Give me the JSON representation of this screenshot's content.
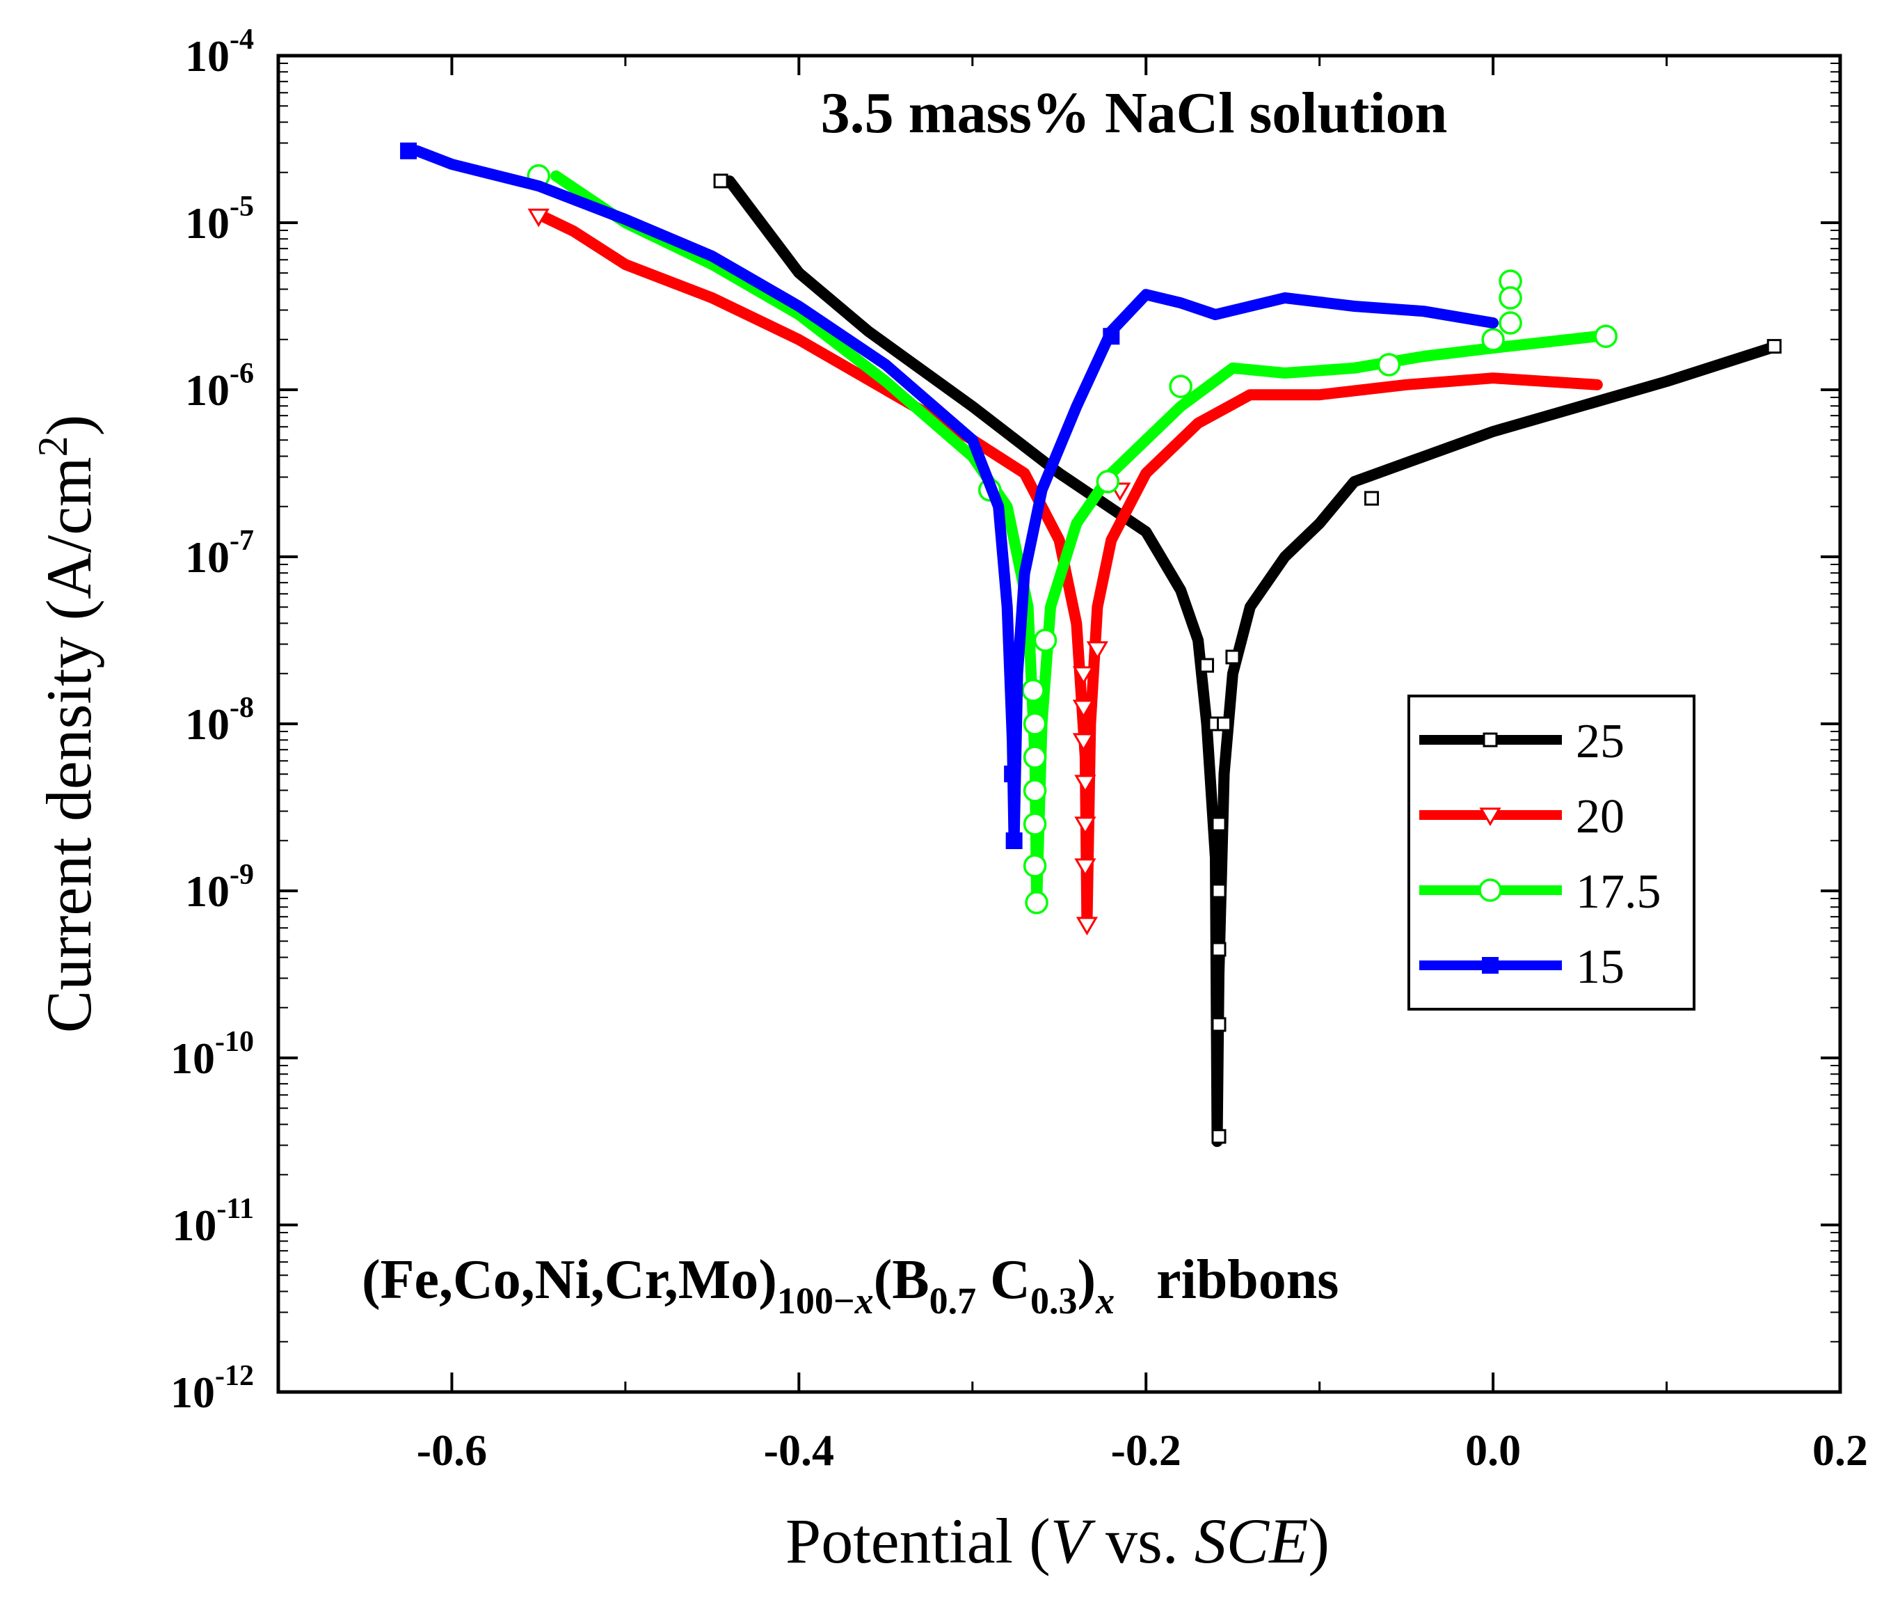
{
  "chart_data": {
    "type": "line",
    "title": "3.5 mass% NaCl solution",
    "annotation": {
      "prefix": "(Fe,Co,Ni,Cr,Mo)",
      "sub1": "100−",
      "sub1_var": "x",
      "mid": "(B",
      "sub2": "0.7",
      "mid2": " C",
      "sub3": "0.3",
      "close": ")",
      "sub4": "x",
      "suffix": "ribbons"
    },
    "xlabel": {
      "prefix": "Potential (",
      "v": "V",
      "mid": " vs. ",
      "sce": "SCE",
      "suffix": ")"
    },
    "ylabel": {
      "prefix": "Current density (A/cm",
      "sup": "2",
      "suffix": ")"
    },
    "xlim": [
      -0.7,
      0.2
    ],
    "ylim_exp": [
      -12,
      -4
    ],
    "x_ticks": [
      {
        "value": -0.6,
        "label": "-0.6"
      },
      {
        "value": -0.4,
        "label": "-0.4"
      },
      {
        "value": -0.2,
        "label": "-0.2"
      },
      {
        "value": 0.0,
        "label": "0.0"
      },
      {
        "value": 0.2,
        "label": "0.2"
      }
    ],
    "y_ticks": [
      {
        "exp": -4,
        "base": "10",
        "sup": "-4"
      },
      {
        "exp": -5,
        "base": "10",
        "sup": "-5"
      },
      {
        "exp": -6,
        "base": "10",
        "sup": "-6"
      },
      {
        "exp": -7,
        "base": "10",
        "sup": "-7"
      },
      {
        "exp": -8,
        "base": "10",
        "sup": "-8"
      },
      {
        "exp": -9,
        "base": "10",
        "sup": "-9"
      },
      {
        "exp": -10,
        "base": "10",
        "sup": "-10"
      },
      {
        "exp": -11,
        "base": "10",
        "sup": "-11"
      },
      {
        "exp": -12,
        "base": "10",
        "sup": "-12"
      }
    ],
    "legend_position": "center-right",
    "series": [
      {
        "name": "25",
        "color": "#000000",
        "marker": "square-open",
        "points": [
          [
            -0.44,
            -4.75
          ],
          [
            -0.4,
            -5.3
          ],
          [
            -0.36,
            -5.65
          ],
          [
            -0.3,
            -6.1
          ],
          [
            -0.25,
            -6.5
          ],
          [
            -0.2,
            -6.85
          ],
          [
            -0.18,
            -7.2
          ],
          [
            -0.17,
            -7.5
          ],
          [
            -0.165,
            -8.0
          ],
          [
            -0.16,
            -8.8
          ],
          [
            -0.159,
            -10.5
          ],
          [
            -0.158,
            -9.5
          ],
          [
            -0.155,
            -8.3
          ],
          [
            -0.15,
            -7.7
          ],
          [
            -0.14,
            -7.3
          ],
          [
            -0.12,
            -7.0
          ],
          [
            -0.1,
            -6.8
          ],
          [
            -0.08,
            -6.55
          ],
          [
            -0.04,
            -6.4
          ],
          [
            0.0,
            -6.25
          ],
          [
            0.05,
            -6.1
          ],
          [
            0.1,
            -5.95
          ],
          [
            0.16,
            -5.75
          ]
        ],
        "markers": [
          [
            -0.445,
            -4.75
          ],
          [
            -0.165,
            -7.65
          ],
          [
            -0.16,
            -8.0
          ],
          [
            -0.158,
            -8.6
          ],
          [
            -0.158,
            -9.0
          ],
          [
            -0.158,
            -9.35
          ],
          [
            -0.158,
            -9.8
          ],
          [
            -0.158,
            -10.47
          ],
          [
            -0.155,
            -8.0
          ],
          [
            -0.15,
            -7.6
          ],
          [
            -0.07,
            -6.65
          ],
          [
            0.162,
            -5.74
          ]
        ]
      },
      {
        "name": "20",
        "color": "#ff0000",
        "marker": "triangle-down-open",
        "points": [
          [
            -0.55,
            -4.95
          ],
          [
            -0.53,
            -5.05
          ],
          [
            -0.5,
            -5.25
          ],
          [
            -0.45,
            -5.45
          ],
          [
            -0.4,
            -5.7
          ],
          [
            -0.35,
            -6.0
          ],
          [
            -0.3,
            -6.3
          ],
          [
            -0.27,
            -6.5
          ],
          [
            -0.25,
            -6.9
          ],
          [
            -0.24,
            -7.4
          ],
          [
            -0.235,
            -8.2
          ],
          [
            -0.234,
            -9.2
          ],
          [
            -0.232,
            -8.0
          ],
          [
            -0.228,
            -7.3
          ],
          [
            -0.22,
            -6.9
          ],
          [
            -0.2,
            -6.5
          ],
          [
            -0.17,
            -6.2
          ],
          [
            -0.14,
            -6.03
          ],
          [
            -0.1,
            -6.03
          ],
          [
            -0.05,
            -5.97
          ],
          [
            0.0,
            -5.93
          ],
          [
            0.06,
            -5.97
          ]
        ],
        "markers": [
          [
            -0.55,
            -4.96
          ],
          [
            -0.236,
            -7.7
          ],
          [
            -0.236,
            -7.9
          ],
          [
            -0.236,
            -8.1
          ],
          [
            -0.235,
            -8.35
          ],
          [
            -0.235,
            -8.6
          ],
          [
            -0.235,
            -8.85
          ],
          [
            -0.234,
            -9.2
          ],
          [
            -0.228,
            -7.55
          ],
          [
            -0.215,
            -6.6
          ]
        ]
      },
      {
        "name": "17.5",
        "color": "#00ff00",
        "marker": "circle-open",
        "points": [
          [
            -0.54,
            -4.72
          ],
          [
            -0.5,
            -5.0
          ],
          [
            -0.45,
            -5.25
          ],
          [
            -0.4,
            -5.55
          ],
          [
            -0.35,
            -5.95
          ],
          [
            -0.3,
            -6.4
          ],
          [
            -0.28,
            -6.7
          ],
          [
            -0.268,
            -7.3
          ],
          [
            -0.264,
            -8.2
          ],
          [
            -0.263,
            -9.07
          ],
          [
            -0.26,
            -8.0
          ],
          [
            -0.255,
            -7.3
          ],
          [
            -0.24,
            -6.8
          ],
          [
            -0.22,
            -6.5
          ],
          [
            -0.18,
            -6.1
          ],
          [
            -0.15,
            -5.87
          ],
          [
            -0.12,
            -5.9
          ],
          [
            -0.08,
            -5.87
          ],
          [
            -0.04,
            -5.8
          ],
          [
            0.0,
            -5.75
          ],
          [
            0.06,
            -5.68
          ]
        ],
        "markers": [
          [
            -0.55,
            -4.72
          ],
          [
            -0.29,
            -6.6
          ],
          [
            -0.265,
            -7.8
          ],
          [
            -0.264,
            -8.0
          ],
          [
            -0.264,
            -8.2
          ],
          [
            -0.264,
            -8.4
          ],
          [
            -0.264,
            -8.6
          ],
          [
            -0.264,
            -8.85
          ],
          [
            -0.263,
            -9.07
          ],
          [
            -0.258,
            -7.5
          ],
          [
            -0.222,
            -6.55
          ],
          [
            -0.18,
            -5.98
          ],
          [
            -0.06,
            -5.85
          ],
          [
            0.0,
            -5.7
          ],
          [
            0.01,
            -5.35
          ],
          [
            0.01,
            -5.45
          ],
          [
            0.01,
            -5.6
          ],
          [
            0.065,
            -5.68
          ]
        ]
      },
      {
        "name": "15",
        "color": "#0000ff",
        "marker": "square-filled",
        "points": [
          [
            -0.62,
            -4.57
          ],
          [
            -0.6,
            -4.65
          ],
          [
            -0.55,
            -4.78
          ],
          [
            -0.5,
            -4.98
          ],
          [
            -0.45,
            -5.2
          ],
          [
            -0.4,
            -5.5
          ],
          [
            -0.35,
            -5.85
          ],
          [
            -0.3,
            -6.3
          ],
          [
            -0.285,
            -6.7
          ],
          [
            -0.28,
            -7.3
          ],
          [
            -0.277,
            -8.1
          ],
          [
            -0.276,
            -8.7
          ],
          [
            -0.274,
            -7.7
          ],
          [
            -0.27,
            -7.1
          ],
          [
            -0.26,
            -6.6
          ],
          [
            -0.24,
            -6.1
          ],
          [
            -0.22,
            -5.65
          ],
          [
            -0.2,
            -5.43
          ],
          [
            -0.18,
            -5.48
          ],
          [
            -0.16,
            -5.55
          ],
          [
            -0.14,
            -5.5
          ],
          [
            -0.12,
            -5.45
          ],
          [
            -0.08,
            -5.5
          ],
          [
            -0.04,
            -5.53
          ],
          [
            0.0,
            -5.6
          ]
        ],
        "markers": [
          [
            -0.625,
            -4.57
          ],
          [
            -0.277,
            -8.3
          ],
          [
            -0.276,
            -8.7
          ],
          [
            -0.22,
            -5.68
          ]
        ]
      }
    ]
  }
}
